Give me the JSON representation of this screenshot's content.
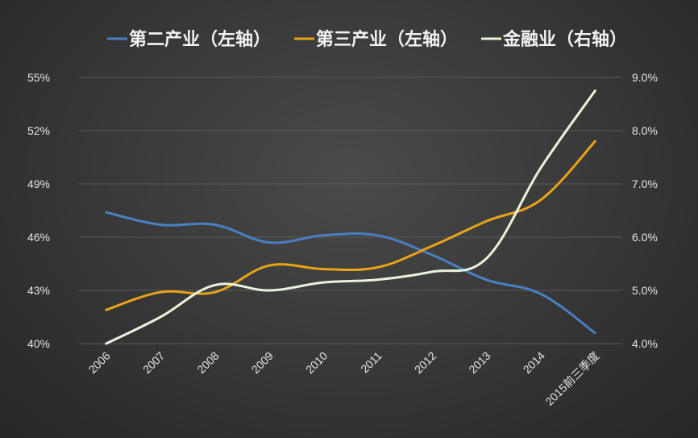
{
  "chart_data": {
    "type": "line",
    "categories": [
      "2006",
      "2007",
      "2008",
      "2009",
      "2010",
      "2011",
      "2012",
      "2013",
      "2014",
      "2015前三季度"
    ],
    "y_left": {
      "ticks": [
        "40%",
        "43%",
        "46%",
        "49%",
        "52%",
        "55%"
      ],
      "range": [
        40,
        55
      ]
    },
    "y_right": {
      "ticks": [
        "4.0%",
        "5.0%",
        "6.0%",
        "7.0%",
        "8.0%",
        "9.0%"
      ],
      "range": [
        4.0,
        9.0
      ]
    },
    "grid": true,
    "legend_position": "top",
    "series": [
      {
        "name": "第二产业（左轴）",
        "axis": "left",
        "color": "#4a7fc1",
        "values": [
          47.4,
          46.7,
          46.7,
          45.7,
          46.1,
          46.1,
          45.0,
          43.6,
          42.8,
          40.6
        ]
      },
      {
        "name": "第三产业（左轴）",
        "axis": "left",
        "color": "#e8a317",
        "values": [
          41.9,
          42.9,
          42.9,
          44.4,
          44.2,
          44.3,
          45.5,
          46.9,
          48.1,
          51.4
        ]
      },
      {
        "name": "金融业（右轴）",
        "axis": "right",
        "color": "#e8f2dc",
        "values": [
          4.0,
          4.5,
          5.1,
          5.0,
          5.15,
          5.2,
          5.35,
          5.6,
          7.3,
          8.75
        ]
      }
    ]
  }
}
